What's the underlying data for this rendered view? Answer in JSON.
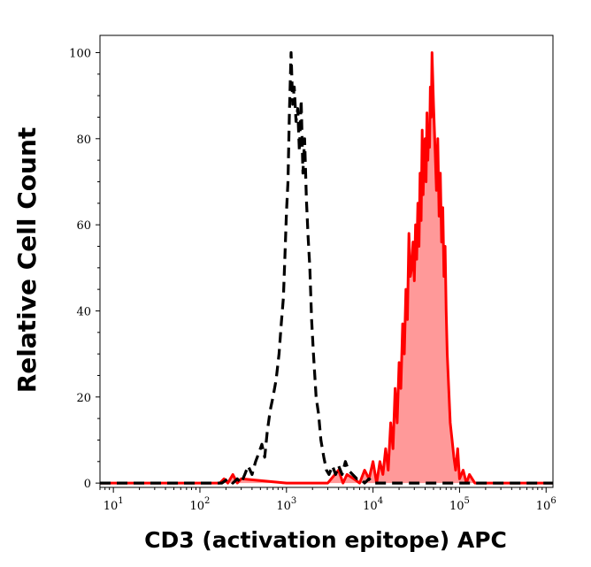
{
  "chart_data": {
    "type": "area",
    "title": "",
    "xlabel": "CD3 (activation epitope) APC",
    "ylabel": "Relative Cell Count",
    "xscale": "log",
    "xlim": [
      7,
      1200000
    ],
    "ylim": [
      -1,
      104
    ],
    "grid": false,
    "x_ticks": [
      {
        "value": 10,
        "base": "10",
        "exp": "1"
      },
      {
        "value": 100,
        "base": "10",
        "exp": "2"
      },
      {
        "value": 1000,
        "base": "10",
        "exp": "3"
      },
      {
        "value": 10000,
        "base": "10",
        "exp": "4"
      },
      {
        "value": 100000,
        "base": "10",
        "exp": "5"
      },
      {
        "value": 1000000,
        "base": "10",
        "exp": "6"
      }
    ],
    "y_ticks": [
      {
        "value": 0,
        "label": "0"
      },
      {
        "value": 20,
        "label": "20"
      },
      {
        "value": 40,
        "label": "40"
      },
      {
        "value": 60,
        "label": "60"
      },
      {
        "value": 80,
        "label": "80"
      },
      {
        "value": 100,
        "label": "100"
      }
    ],
    "series": [
      {
        "style": "dashed-line",
        "color": "#000000",
        "x": [
          7,
          150,
          180,
          210,
          240,
          270,
          300,
          330,
          360,
          400,
          440,
          480,
          520,
          560,
          600,
          650,
          700,
          760,
          820,
          870,
          920,
          960,
          1000,
          1040,
          1080,
          1130,
          1180,
          1230,
          1290,
          1350,
          1410,
          1480,
          1550,
          1620,
          1700,
          1780,
          1860,
          1950,
          2050,
          2200,
          2350,
          2500,
          2700,
          2900,
          3100,
          3400,
          3700,
          4000,
          4400,
          4800,
          5200,
          5800,
          6500,
          7200,
          8000,
          9000,
          10000,
          12000,
          20000,
          1200000
        ],
        "values": [
          0,
          0,
          0,
          1,
          0,
          1,
          0,
          2,
          4,
          2,
          5,
          7,
          9,
          6,
          12,
          17,
          20,
          24,
          30,
          37,
          43,
          53,
          63,
          70,
          86,
          100,
          88,
          92,
          84,
          87,
          77,
          89,
          72,
          80,
          66,
          57,
          50,
          38,
          30,
          20,
          16,
          10,
          6,
          3,
          2,
          4,
          2,
          4,
          2,
          5,
          3,
          2,
          1,
          1,
          0,
          1,
          0,
          0,
          0,
          0
        ]
      },
      {
        "style": "filled-area",
        "color": "#ff0000",
        "fill": "#ff9999",
        "x": [
          7,
          150,
          170,
          190,
          210,
          240,
          270,
          300,
          1000,
          3000,
          4000,
          4500,
          5000,
          6000,
          7000,
          8000,
          9000,
          10000,
          11000,
          12000,
          13000,
          14000,
          15000,
          16000,
          17000,
          18000,
          19000,
          20000,
          21000,
          22000,
          23000,
          24000,
          25000,
          26000,
          27000,
          28000,
          29000,
          30000,
          31000,
          32000,
          33000,
          34000,
          35000,
          36000,
          37000,
          38000,
          39000,
          40000,
          41000,
          42000,
          43000,
          44000,
          45000,
          46000,
          47000,
          48000,
          50000,
          52000,
          54000,
          56000,
          58000,
          60000,
          62000,
          64000,
          66000,
          68000,
          70000,
          72000,
          75000,
          78000,
          82000,
          86000,
          90000,
          95000,
          100000,
          110000,
          120000,
          130000,
          150000,
          1200000
        ],
        "values": [
          0,
          0,
          0,
          1,
          0,
          2,
          0,
          1,
          0,
          0,
          3,
          0,
          2,
          1,
          0,
          3,
          1,
          5,
          0,
          5,
          2,
          8,
          3,
          14,
          8,
          22,
          14,
          28,
          22,
          37,
          30,
          45,
          38,
          58,
          48,
          50,
          56,
          47,
          60,
          52,
          65,
          55,
          72,
          61,
          82,
          67,
          77,
          80,
          70,
          86,
          75,
          83,
          78,
          92,
          85,
          100,
          88,
          78,
          68,
          80,
          62,
          72,
          56,
          64,
          48,
          55,
          40,
          30,
          22,
          14,
          10,
          6,
          3,
          8,
          1,
          3,
          0,
          2,
          0,
          0
        ]
      }
    ]
  }
}
